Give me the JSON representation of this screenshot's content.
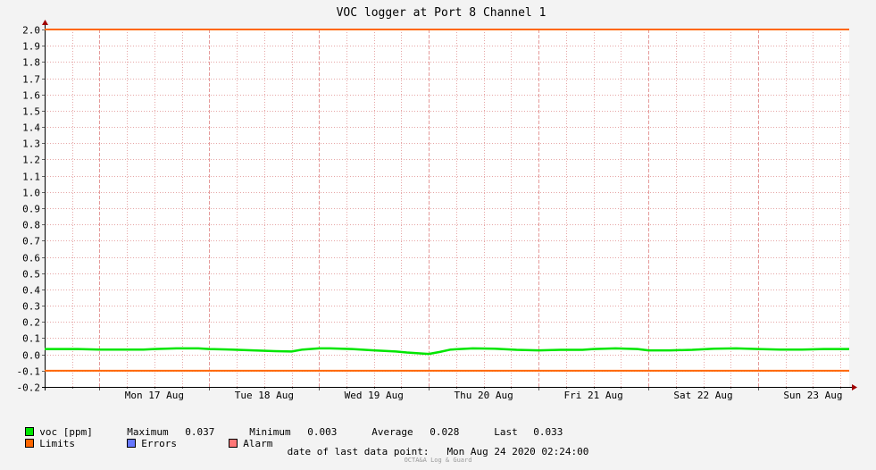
{
  "chart_data": {
    "type": "line",
    "title": "VOC logger at Port 8 Channel 1",
    "ylim": [
      -0.2,
      2.0
    ],
    "y_ticks": [
      "2.0",
      "1.9",
      "1.8",
      "1.7",
      "1.6",
      "1.5",
      "1.4",
      "1.3",
      "1.2",
      "1.1",
      "1.0",
      "0.9",
      "0.8",
      "0.7",
      "0.6",
      "0.5",
      "0.4",
      "0.3",
      "0.2",
      "0.1",
      "0.0",
      "-0.1",
      "-0.2"
    ],
    "x_tick_labels": [
      "Mon 17 Aug",
      "Tue 18 Aug",
      "Wed 19 Aug",
      "Thu 20 Aug",
      "Fri 21 Aug",
      "Sat 22 Aug",
      "Sun 23 Aug"
    ],
    "xlim_days": [
      16.5,
      23.83
    ],
    "grid": true,
    "series": [
      {
        "name": "voc [ppm]",
        "color": "#00e600",
        "x": [
          16.5,
          16.8,
          17.0,
          17.2,
          17.4,
          17.5,
          17.7,
          17.9,
          18.0,
          18.2,
          18.4,
          18.6,
          18.75,
          18.85,
          19.0,
          19.1,
          19.3,
          19.5,
          19.7,
          19.8,
          19.95,
          20.0,
          20.1,
          20.2,
          20.4,
          20.6,
          20.8,
          21.0,
          21.2,
          21.4,
          21.5,
          21.7,
          21.9,
          22.0,
          22.2,
          22.4,
          22.6,
          22.8,
          23.0,
          23.2,
          23.4,
          23.6,
          23.83
        ],
        "y": [
          0.033,
          0.033,
          0.03,
          0.03,
          0.03,
          0.033,
          0.037,
          0.037,
          0.033,
          0.03,
          0.025,
          0.02,
          0.018,
          0.03,
          0.037,
          0.037,
          0.033,
          0.025,
          0.018,
          0.012,
          0.005,
          0.003,
          0.015,
          0.03,
          0.037,
          0.035,
          0.028,
          0.025,
          0.028,
          0.028,
          0.033,
          0.037,
          0.033,
          0.025,
          0.025,
          0.028,
          0.035,
          0.037,
          0.033,
          0.03,
          0.03,
          0.033,
          0.033
        ]
      },
      {
        "name": "Limits",
        "color": "#ff6600",
        "upper": 2.0,
        "lower": -0.1
      }
    ],
    "legend": {
      "voc_label": "voc [ppm]",
      "maximum_label": "Maximum",
      "maximum": "0.037",
      "minimum_label": "Minimum",
      "minimum": "0.003",
      "average_label": "Average",
      "average": "0.028",
      "last_label": "Last",
      "last": "0.033",
      "limits_label": "Limits",
      "errors_label": "Errors",
      "alarm_label": "Alarm",
      "colors": {
        "voc": "#00e600",
        "limits": "#ff6600",
        "errors": "#6677ff",
        "alarm": "#ff7777"
      }
    },
    "footer": {
      "date_label": "date of last data point:",
      "date_value": "Mon Aug 24 2020 02:24:00",
      "credit": "OCTA&A Log & Guard"
    }
  }
}
